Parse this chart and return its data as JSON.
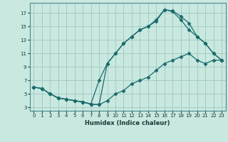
{
  "xlabel": "Humidex (Indice chaleur)",
  "bg_color": "#c8e8e0",
  "grid_color": "#a0c8c0",
  "line_color": "#1a6b6b",
  "xlim": [
    -0.5,
    23.5
  ],
  "ylim": [
    2.5,
    18.5
  ],
  "xticks": [
    0,
    1,
    2,
    3,
    4,
    5,
    6,
    7,
    8,
    9,
    10,
    11,
    12,
    13,
    14,
    15,
    16,
    17,
    18,
    19,
    20,
    21,
    22,
    23
  ],
  "yticks": [
    3,
    5,
    7,
    9,
    11,
    13,
    15,
    17
  ],
  "line1_x": [
    0,
    1,
    2,
    3,
    4,
    5,
    6,
    7,
    8,
    9,
    10,
    11,
    12,
    13,
    14,
    15,
    16,
    17,
    18,
    19,
    20,
    21,
    22,
    23
  ],
  "line1_y": [
    6,
    5.8,
    5,
    4.4,
    4.2,
    4.0,
    3.8,
    3.5,
    3.4,
    9.5,
    11.0,
    12.5,
    13.5,
    14.5,
    15.0,
    16.0,
    17.5,
    17.3,
    16.5,
    15.5,
    13.5,
    12.5,
    11.0,
    10.0
  ],
  "line2_x": [
    0,
    1,
    2,
    3,
    4,
    5,
    6,
    7,
    8,
    9,
    10,
    11,
    12,
    13,
    14,
    15,
    16,
    17,
    18,
    19,
    20,
    21,
    22,
    23
  ],
  "line2_y": [
    6,
    5.8,
    5,
    4.4,
    4.2,
    4.0,
    3.8,
    3.5,
    7.0,
    9.5,
    11.0,
    12.5,
    13.5,
    14.5,
    15.0,
    15.8,
    17.5,
    17.2,
    16.0,
    14.5,
    13.5,
    12.5,
    11.0,
    10.0
  ],
  "line3_x": [
    0,
    1,
    2,
    3,
    4,
    5,
    6,
    7,
    8,
    9,
    10,
    11,
    12,
    13,
    14,
    15,
    16,
    17,
    18,
    19,
    20,
    21,
    22,
    23
  ],
  "line3_y": [
    6.0,
    5.8,
    5.0,
    4.4,
    4.2,
    4.0,
    3.8,
    3.5,
    3.4,
    4.0,
    5.0,
    5.5,
    6.5,
    7.0,
    7.5,
    8.5,
    9.5,
    10.0,
    10.5,
    11.0,
    10.0,
    9.5,
    10.0,
    10.0
  ]
}
